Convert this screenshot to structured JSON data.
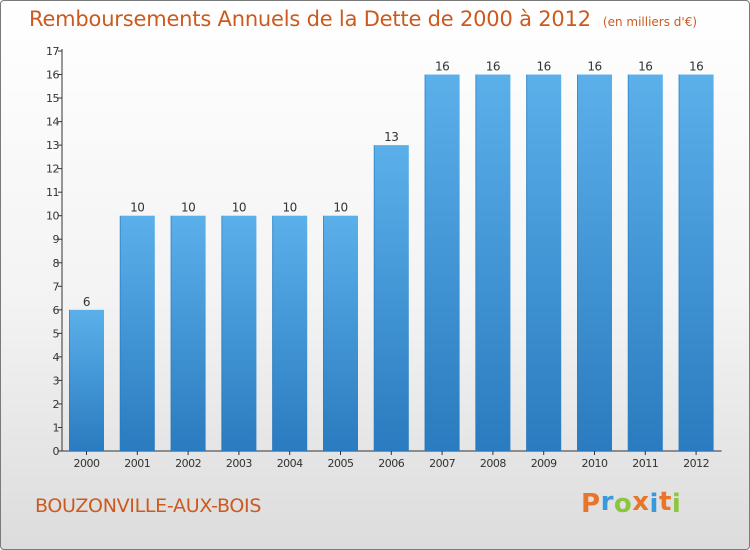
{
  "chart_data": {
    "type": "bar",
    "title": "Remboursements Annuels de la Dette de 2000 à 2012",
    "unit_note": "(en milliers d'€)",
    "categories": [
      "2000",
      "2001",
      "2002",
      "2003",
      "2004",
      "2005",
      "2006",
      "2007",
      "2008",
      "2009",
      "2010",
      "2011",
      "2012"
    ],
    "values": [
      6,
      10,
      10,
      10,
      10,
      10,
      13,
      16,
      16,
      16,
      16,
      16,
      16
    ],
    "data_labels": [
      "6",
      "10",
      "10",
      "10",
      "10",
      "10",
      "13",
      "16",
      "16",
      "16",
      "16",
      "16",
      "16"
    ],
    "y_ticks": [
      "0",
      "1",
      "2",
      "3",
      "4",
      "5",
      "6",
      "7",
      "8",
      "9",
      "10",
      "11",
      "12",
      "13",
      "14",
      "15",
      "16",
      "17"
    ],
    "ylim": [
      0,
      17
    ],
    "grid": false,
    "bar_color": "#3c95d9",
    "bar_color_light": "#5bb0ea",
    "bar_color_dark": "#2a7bbf"
  },
  "footer": {
    "commune": "BOUZONVILLE-AUX-BOIS",
    "brand_letters": [
      "P",
      "r",
      "o",
      "x",
      "i",
      "t",
      "i"
    ],
    "brand_colors": [
      "#e8752a",
      "#3a9ad9",
      "#8cc63f",
      "#e8752a",
      "#3a9ad9",
      "#e8752a",
      "#8cc63f"
    ]
  }
}
